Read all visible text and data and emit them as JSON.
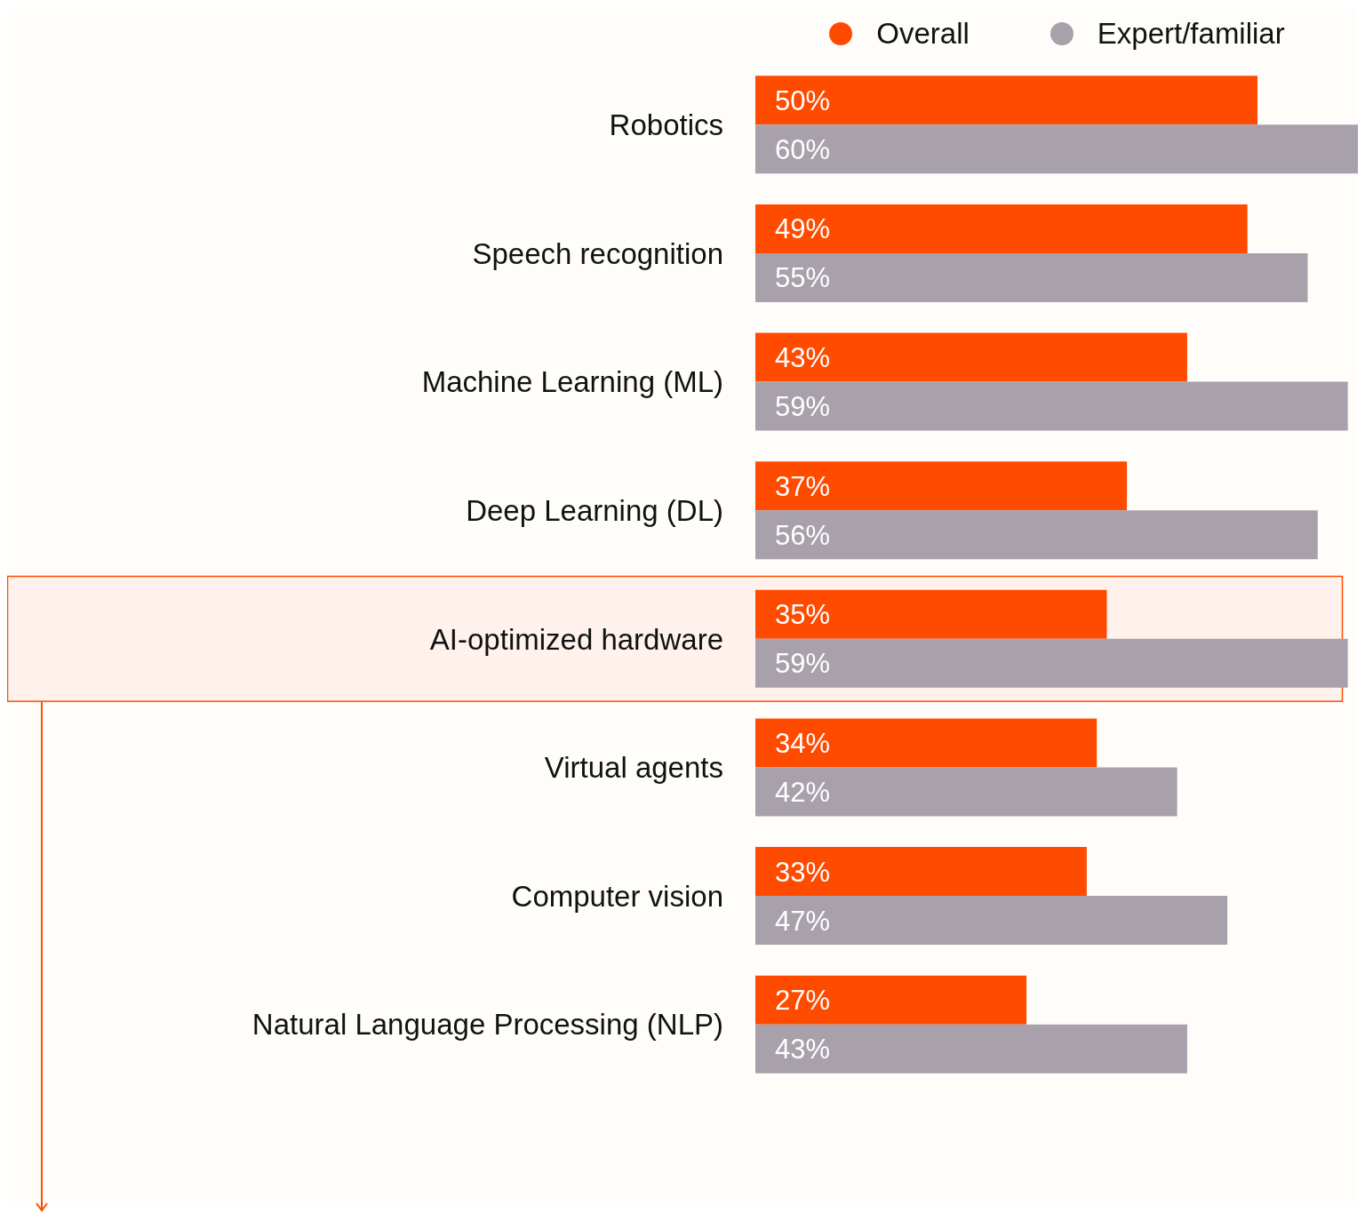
{
  "chart_data": {
    "type": "bar",
    "orientation": "horizontal",
    "legend": "top",
    "bands": [
      {
        "axis": "y",
        "from": "AI-optimized hardware",
        "to": "AI-optimized hardware",
        "color": "#fff2ed"
      }
    ],
    "categories": [
      "Robotics",
      "Speech recognition",
      "Machine Learning (ML)",
      "Deep Learning (DL)",
      "AI-optimized hardware",
      "Virtual agents",
      "Computer vision",
      "Natural Language Processing (NLP)"
    ],
    "series": [
      {
        "name": "Overall",
        "color": "#ff4b00",
        "values": [
          50,
          49,
          43,
          37,
          35,
          34,
          33,
          27
        ],
        "value_labels": [
          "50%",
          "49%",
          "43%",
          "37%",
          "35%",
          "34%",
          "33%",
          "27%"
        ]
      },
      {
        "name": "Expert/familiar",
        "color": "#a8a0ab",
        "values": [
          60,
          55,
          59,
          56,
          59,
          42,
          47,
          43
        ],
        "value_labels": [
          "60%",
          "55%",
          "59%",
          "56%",
          "59%",
          "42%",
          "47%",
          "43%"
        ]
      }
    ]
  }
}
